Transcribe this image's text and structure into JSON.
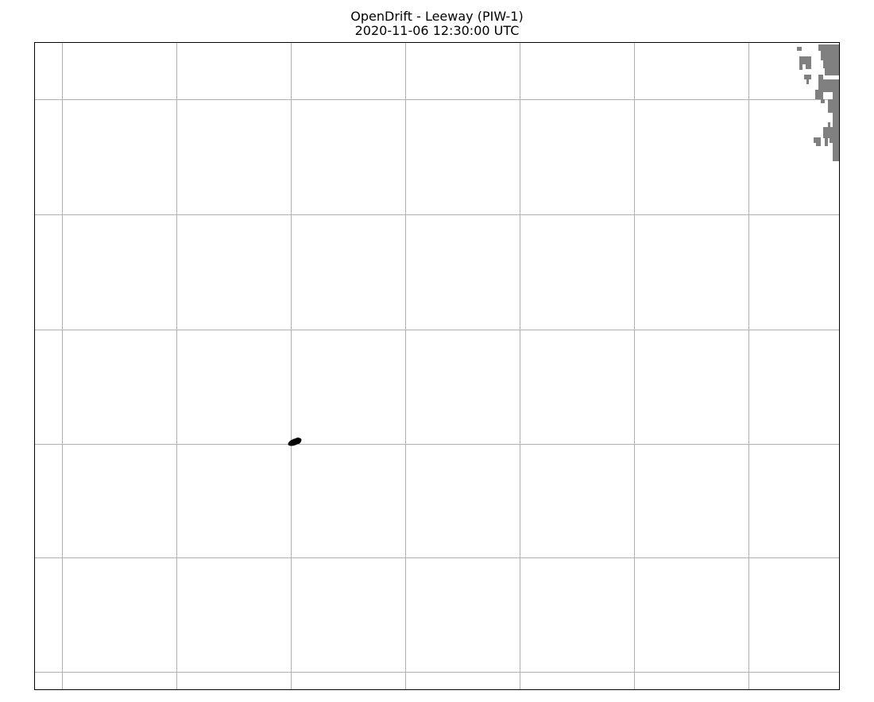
{
  "figure": {
    "title": "OpenDrift - Leeway (PIW-1)",
    "timestamp": "2020-11-06 12:30:00 UTC"
  },
  "map": {
    "colors": {
      "ocean": "#ffffff",
      "land": "#808080",
      "gridline": "#b0b0b0",
      "frame": "#000000",
      "particles": "#000000"
    },
    "gridlines": true,
    "particle_cluster": {
      "description_label": "",
      "count_visible": "cluster"
    }
  }
}
